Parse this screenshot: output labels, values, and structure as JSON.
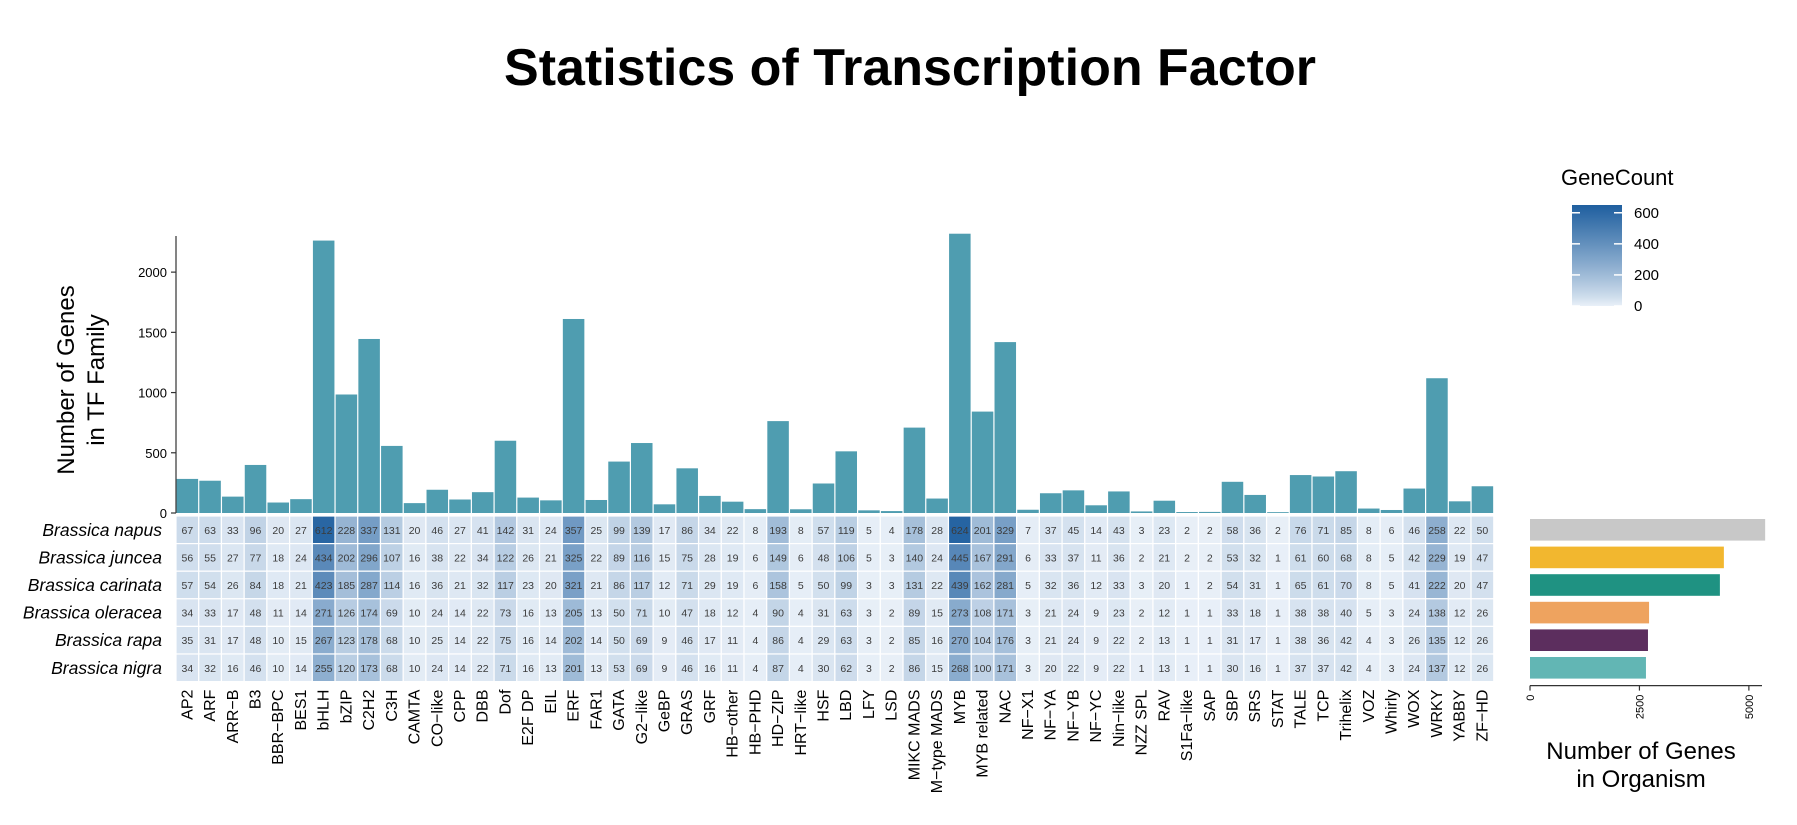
{
  "title": "Statistics of Transcription Factor",
  "chart_data": {
    "type": "heatmap",
    "title": "Statistics of Transcription Factor",
    "families": [
      "AP2",
      "ARF",
      "ARR−B",
      "B3",
      "BBR−BPC",
      "BES1",
      "bHLH",
      "bZIP",
      "C2H2",
      "C3H",
      "CAMTA",
      "CO−like",
      "CPP",
      "DBB",
      "Dof",
      "E2F DP",
      "EIL",
      "ERF",
      "FAR1",
      "GATA",
      "G2−like",
      "GeBP",
      "GRAS",
      "GRF",
      "HB−other",
      "HB−PHD",
      "HD−ZIP",
      "HRT−like",
      "HSF",
      "LBD",
      "LFY",
      "LSD",
      "MIKC MADS",
      "M−type MADS",
      "MYB",
      "MYB related",
      "NAC",
      "NF−X1",
      "NF−YA",
      "NF−YB",
      "NF−YC",
      "Nin−like",
      "NZZ SPL",
      "RAV",
      "S1Fa−like",
      "SAP",
      "SBP",
      "SRS",
      "STAT",
      "TALE",
      "TCP",
      "Trihelix",
      "VOZ",
      "Whirly",
      "WOX",
      "WRKY",
      "YABBY",
      "ZF−HD"
    ],
    "organisms": [
      "Brassica napus",
      "Brassica juncea",
      "Brassica carinata",
      "Brassica oleracea",
      "Brassica rapa",
      "Brassica nigra"
    ],
    "counts": [
      [
        67,
        63,
        33,
        96,
        20,
        27,
        612,
        228,
        337,
        131,
        20,
        46,
        27,
        41,
        142,
        31,
        24,
        357,
        25,
        99,
        139,
        17,
        86,
        34,
        22,
        8,
        193,
        8,
        57,
        119,
        5,
        4,
        178,
        28,
        624,
        201,
        329,
        7,
        37,
        45,
        14,
        43,
        3,
        23,
        2,
        2,
        58,
        36,
        2,
        76,
        71,
        85,
        8,
        6,
        46,
        258,
        22,
        50
      ],
      [
        56,
        55,
        27,
        77,
        18,
        24,
        434,
        202,
        296,
        107,
        16,
        38,
        22,
        34,
        122,
        26,
        21,
        325,
        22,
        89,
        116,
        15,
        75,
        28,
        19,
        6,
        149,
        6,
        48,
        106,
        5,
        3,
        140,
        24,
        445,
        167,
        291,
        6,
        33,
        37,
        11,
        36,
        2,
        21,
        2,
        2,
        53,
        32,
        1,
        61,
        60,
        68,
        8,
        5,
        42,
        229,
        19,
        47
      ],
      [
        57,
        54,
        26,
        84,
        18,
        21,
        423,
        185,
        287,
        114,
        16,
        36,
        21,
        32,
        117,
        23,
        20,
        321,
        21,
        86,
        117,
        12,
        71,
        29,
        19,
        6,
        158,
        5,
        50,
        99,
        3,
        3,
        131,
        22,
        439,
        162,
        281,
        5,
        32,
        36,
        12,
        33,
        3,
        20,
        1,
        2,
        54,
        31,
        1,
        65,
        61,
        70,
        8,
        5,
        41,
        222,
        20,
        47
      ],
      [
        34,
        33,
        17,
        48,
        11,
        14,
        271,
        126,
        174,
        69,
        10,
        24,
        14,
        22,
        73,
        16,
        13,
        205,
        13,
        50,
        71,
        10,
        47,
        18,
        12,
        4,
        90,
        4,
        31,
        63,
        3,
        2,
        89,
        15,
        273,
        108,
        171,
        3,
        21,
        24,
        9,
        23,
        2,
        12,
        1,
        1,
        33,
        18,
        1,
        38,
        38,
        40,
        5,
        3,
        24,
        138,
        12,
        26
      ],
      [
        35,
        31,
        17,
        48,
        10,
        15,
        267,
        123,
        178,
        68,
        10,
        25,
        14,
        22,
        75,
        16,
        14,
        202,
        14,
        50,
        69,
        9,
        46,
        17,
        11,
        4,
        86,
        4,
        29,
        63,
        3,
        2,
        85,
        16,
        270,
        104,
        176,
        3,
        21,
        24,
        9,
        22,
        2,
        13,
        1,
        1,
        31,
        17,
        1,
        38,
        36,
        42,
        4,
        3,
        26,
        135,
        12,
        26
      ],
      [
        34,
        32,
        16,
        46,
        10,
        14,
        255,
        120,
        173,
        68,
        10,
        24,
        14,
        22,
        71,
        16,
        13,
        201,
        13,
        53,
        69,
        9,
        46,
        16,
        11,
        4,
        87,
        4,
        30,
        62,
        3,
        2,
        86,
        15,
        268,
        100,
        171,
        3,
        20,
        22,
        9,
        22,
        1,
        13,
        1,
        1,
        30,
        16,
        1,
        37,
        37,
        42,
        4,
        3,
        24,
        137,
        12,
        26
      ]
    ],
    "family_totals": {
      "type": "bar",
      "ylabel": "Number of Genes\nin TF Family",
      "ylim": [
        0,
        2300
      ],
      "yticks": [
        0,
        500,
        1000,
        1500,
        2000
      ],
      "color": "#4f9db0"
    },
    "organism_totals": {
      "type": "bar",
      "orientation": "horizontal",
      "xlabel": "Number of Genes\nin Organism",
      "xlim": [
        0,
        5300
      ],
      "xticks": [
        0,
        2500,
        5000
      ],
      "colors": [
        "#c8c8c8",
        "#f2b72f",
        "#1f9282",
        "#eea35f",
        "#5c2e5e",
        "#62b6b4"
      ]
    },
    "legend": {
      "title": "GeneCount",
      "ticks": [
        0,
        200,
        400,
        600
      ],
      "range": [
        0,
        650
      ],
      "color_low": "#e9f0f8",
      "color_high": "#1f5f9f"
    }
  }
}
